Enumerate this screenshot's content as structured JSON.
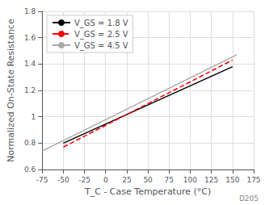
{
  "chart_data": {
    "type": "line",
    "xlabel": "T_C - Case Temperature (°C)",
    "ylabel": "Normalized On-State Resistance",
    "xlim": [
      -75,
      175
    ],
    "ylim": [
      0.6,
      1.8
    ],
    "xticks": [
      -75,
      -50,
      -25,
      0,
      25,
      50,
      75,
      100,
      125,
      150,
      175
    ],
    "yticks": [
      0.6,
      0.8,
      1.0,
      1.2,
      1.4,
      1.6,
      1.8
    ],
    "grid": true,
    "legend": "upper left",
    "annotations": [
      "D205"
    ],
    "series": [
      {
        "name": "V_GS = 1.8 V",
        "color": "#000000",
        "line_style": "solid",
        "x": [
          -50,
          150
        ],
        "values": [
          0.8,
          1.38
        ]
      },
      {
        "name": "V_GS = 2.5 V",
        "color": "#ff0000",
        "line_style": "dashed",
        "x": [
          -50,
          150
        ],
        "values": [
          0.77,
          1.43
        ]
      },
      {
        "name": "V_GS = 4.5 V",
        "color": "#aaaaaa",
        "line_style": "solid",
        "x": [
          -75,
          155
        ],
        "values": [
          0.74,
          1.47
        ]
      }
    ]
  }
}
